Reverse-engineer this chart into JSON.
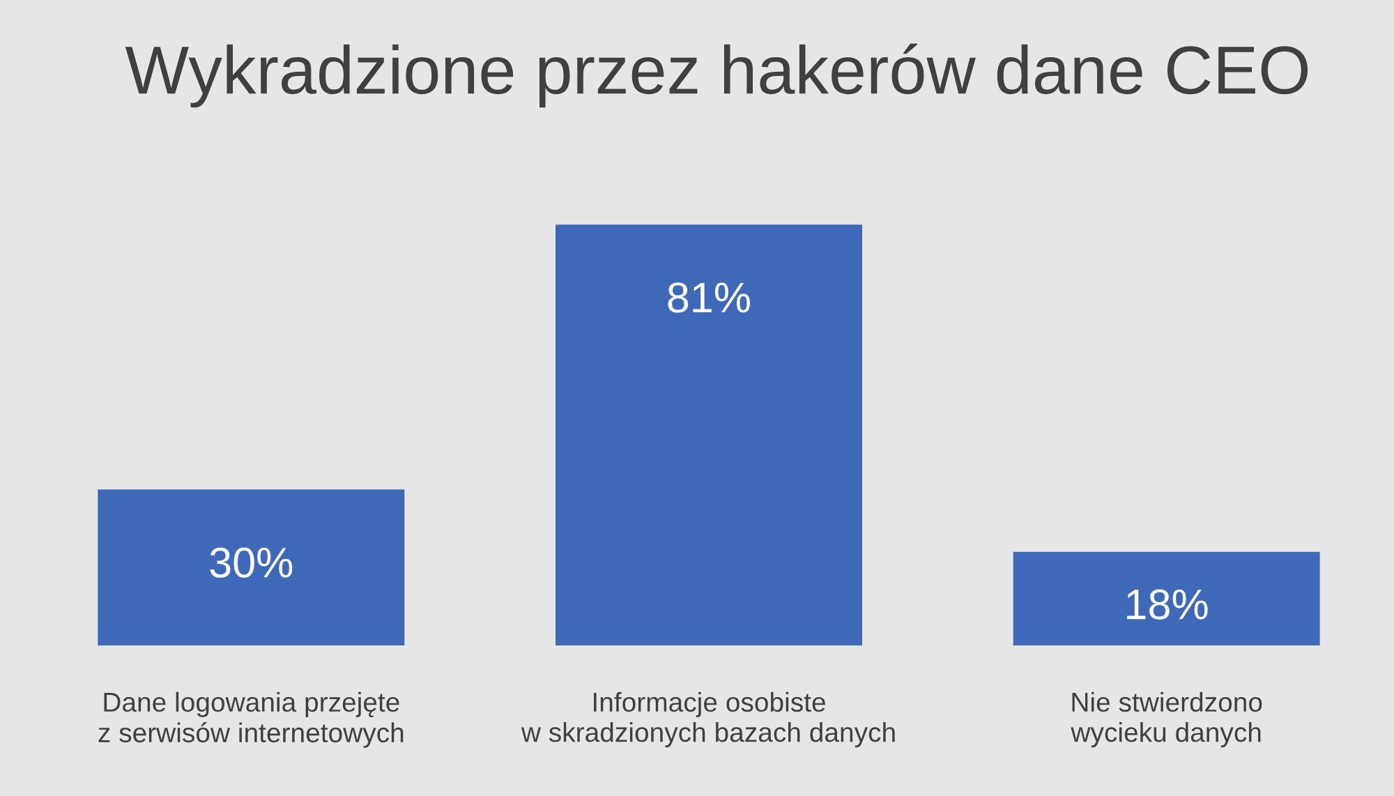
{
  "chart_data": {
    "type": "bar",
    "title": "Wykradzione przez hakerów dane CEO",
    "categories": [
      "Dane logowania przejęte\nz serwisów internetowych",
      "Informacje osobiste\nw skradzionych bazach danych",
      "Nie stwierdzono\nwycieku danych"
    ],
    "values": [
      30,
      81,
      18
    ],
    "color": "#3d69b8",
    "value_labels": [
      "30%",
      "81%",
      "18%"
    ],
    "grid": false,
    "legend": false
  }
}
